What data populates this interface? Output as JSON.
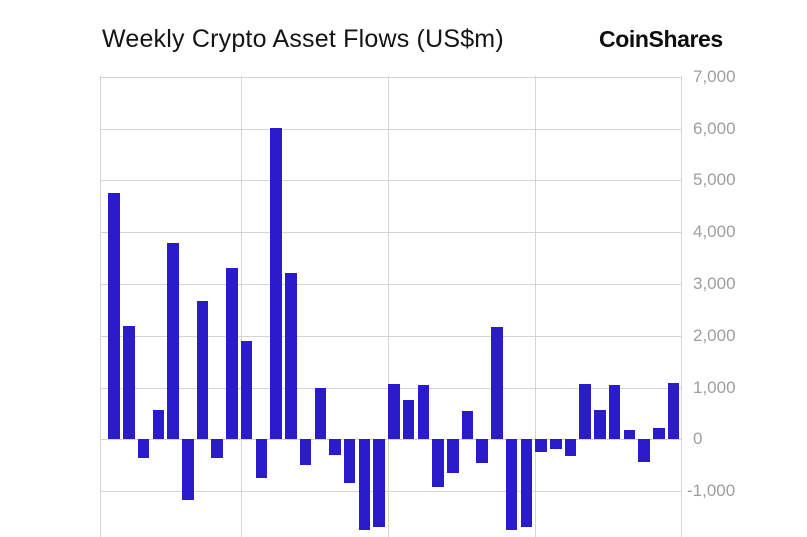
{
  "header": {
    "title": "Weekly Crypto Asset Flows (US$m)",
    "logo": "CoinShares"
  },
  "colors": {
    "background": "#ffffff",
    "bar": "#2a1cc8",
    "grid": "#d4d4d4",
    "axis_label": "#9e9e9e",
    "title": "#141414"
  },
  "chart_data": {
    "type": "bar",
    "title": "Weekly Crypto Asset Flows (US$m)",
    "unit": "US$m",
    "xlabel": "",
    "ylabel": "",
    "x_tick_labels_visible": false,
    "legend": false,
    "grid": true,
    "ylim": [
      -1900,
      7000
    ],
    "num_bars": 39,
    "bar_color": "#2a1cc8",
    "values": [
      4750,
      2190,
      -360,
      570,
      3790,
      -1180,
      2670,
      -360,
      3300,
      1900,
      -740,
      6010,
      3210,
      -490,
      990,
      -300,
      -840,
      -1750,
      -1700,
      1070,
      750,
      1050,
      -930,
      -650,
      550,
      -460,
      2170,
      -1750,
      -1700,
      -250,
      -180,
      -330,
      1060,
      570,
      1050,
      190,
      -430,
      210,
      1090
    ],
    "y_ticks": [
      {
        "value": 7000,
        "label": "7,000"
      },
      {
        "value": 6000,
        "label": "6,000"
      },
      {
        "value": 5000,
        "label": "5,000"
      },
      {
        "value": 4000,
        "label": "4,000"
      },
      {
        "value": 3000,
        "label": "3,000"
      },
      {
        "value": 2000,
        "label": "2,000"
      },
      {
        "value": 1000,
        "label": "1,000"
      },
      {
        "value": 0,
        "label": "0"
      },
      {
        "value": -1000,
        "label": "-1,000"
      }
    ]
  }
}
